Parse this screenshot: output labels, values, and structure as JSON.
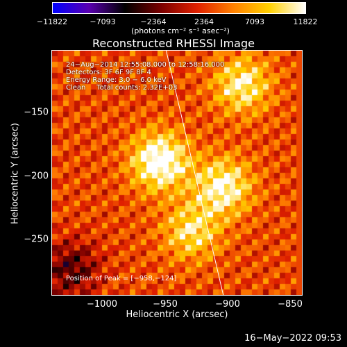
{
  "colorbar": {
    "ticks": [
      "−11822",
      "−7093",
      "−2364",
      "2364",
      "7093",
      "11822"
    ],
    "units": "(photons cm⁻² s⁻¹ asec⁻²)",
    "colormap": [
      "#0000ff",
      "#5a00b0",
      "#000000",
      "#7a0000",
      "#e02000",
      "#ff8000",
      "#ffd000",
      "#ffffff"
    ]
  },
  "title": "Reconstructed RHESSI Image",
  "annotations": {
    "line1": "24−Aug−2014 12:55:08.000 to 12:58:16.000",
    "line2": "Detectors: 3F 6F 9F 8F 4",
    "line3": "Energy Range: 3.0 − 6.0 keV",
    "line4": "Clean     Total counts: 2.32E+03",
    "peak": "Position of Peak = [−958,−124]"
  },
  "axes": {
    "xlabel": "Heliocentric X (arcsec)",
    "ylabel": "Heliocentric Y (arcsec)",
    "xticks": [
      "−1000",
      "−950",
      "−900",
      "−850"
    ],
    "yticks": [
      "−150",
      "−200",
      "−250"
    ]
  },
  "timestamp": "16−May−2022 09:53",
  "chart_data": {
    "type": "heatmap",
    "title": "Reconstructed RHESSI Image",
    "xlabel": "Heliocentric X (arcsec)",
    "ylabel": "Heliocentric Y (arcsec)",
    "xlim": [
      -1040,
      -843
    ],
    "ylim": [
      -295,
      -103
    ],
    "xticks": [
      -1000,
      -950,
      -900,
      -850
    ],
    "yticks": [
      -150,
      -200,
      -250
    ],
    "color_range": [
      -11822,
      11822
    ],
    "colorbar_ticks": [
      -11822,
      -7093,
      -2364,
      2364,
      7093,
      11822
    ],
    "colorbar_units": "(photons cm⁻² s⁻¹ asec⁻²)",
    "peak_position": [
      -958,
      -124
    ],
    "limb_line": [
      [
        -950,
        -103
      ],
      [
        -905,
        -295
      ]
    ],
    "bright_regions": [
      {
        "x": -955,
        "y": -190,
        "level": 11000
      },
      {
        "x": -905,
        "y": -210,
        "level": 9000
      },
      {
        "x": -890,
        "y": -130,
        "level": 8000
      },
      {
        "x": -930,
        "y": -245,
        "level": 7000
      }
    ],
    "negative_regions": [
      {
        "x": -1025,
        "y": -275,
        "level": -6000
      }
    ],
    "grid": false
  }
}
